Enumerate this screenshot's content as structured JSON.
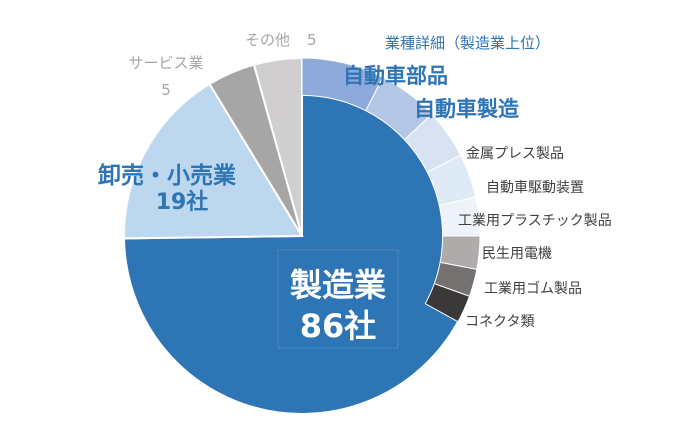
{
  "colors": {
    "manufacturing": "#2E75B6",
    "wholesale_retail": "#BDD7EE",
    "service": "#A6A6A6",
    "other": "#D0CECE",
    "detail_blue_1": "#8EAADB",
    "detail_blue_2": "#B4C7E7",
    "detail_blue_3": "#D9E2F3",
    "detail_blue_4": "#DEEAF6",
    "detail_blue_5": "#EEF3FA",
    "detail_gray_1": "#AFABAB",
    "detail_gray_2": "#757171",
    "detail_gray_3": "#3A3838",
    "label_blue": "#2E75B6",
    "label_gray": "#A6A6A6",
    "label_dark": "#404040",
    "label_white": "#FFFFFF"
  },
  "chart_data": {
    "type": "pie",
    "title": "",
    "start_angle_deg": 0,
    "direction": "clockwise",
    "slices": [
      {
        "name": "製造業",
        "value": 86,
        "value_label": "86社",
        "color": "#2E75B6",
        "label_color": "#FFFFFF"
      },
      {
        "name": "卸売・小売業",
        "value": 19,
        "value_label": "19社",
        "color": "#BDD7EE",
        "label_color": "#2E75B6"
      },
      {
        "name": "サービス業",
        "value": 5,
        "value_label": "5",
        "color": "#A6A6A6",
        "label_color": "#A6A6A6"
      },
      {
        "name": "その他",
        "value": 5,
        "value_label": "5",
        "color": "#D0CECE",
        "label_color": "#A6A6A6"
      }
    ],
    "breakdown": {
      "title": "業種詳細（製造業上位）",
      "parent": "製造業",
      "items": [
        {
          "name": "自動車部品",
          "color": "#8EAADB",
          "share_of_pie": 0.075
        },
        {
          "name": "自動車製造",
          "color": "#B4C7E7",
          "share_of_pie": 0.055
        },
        {
          "name": "金属プレス製品",
          "color": "#D9E2F3",
          "share_of_pie": 0.045
        },
        {
          "name": "自動車駆動装置",
          "color": "#DEEAF6",
          "share_of_pie": 0.04
        },
        {
          "name": "工業用プラスチック製品",
          "color": "#EEF3FA",
          "share_of_pie": 0.035
        },
        {
          "name": "民生用電機",
          "color": "#AFABAB",
          "share_of_pie": 0.03
        },
        {
          "name": "工業用ゴム製品",
          "color": "#757171",
          "share_of_pie": 0.025
        },
        {
          "name": "コネクタ類",
          "color": "#3A3838",
          "share_of_pie": 0.025
        }
      ]
    }
  }
}
